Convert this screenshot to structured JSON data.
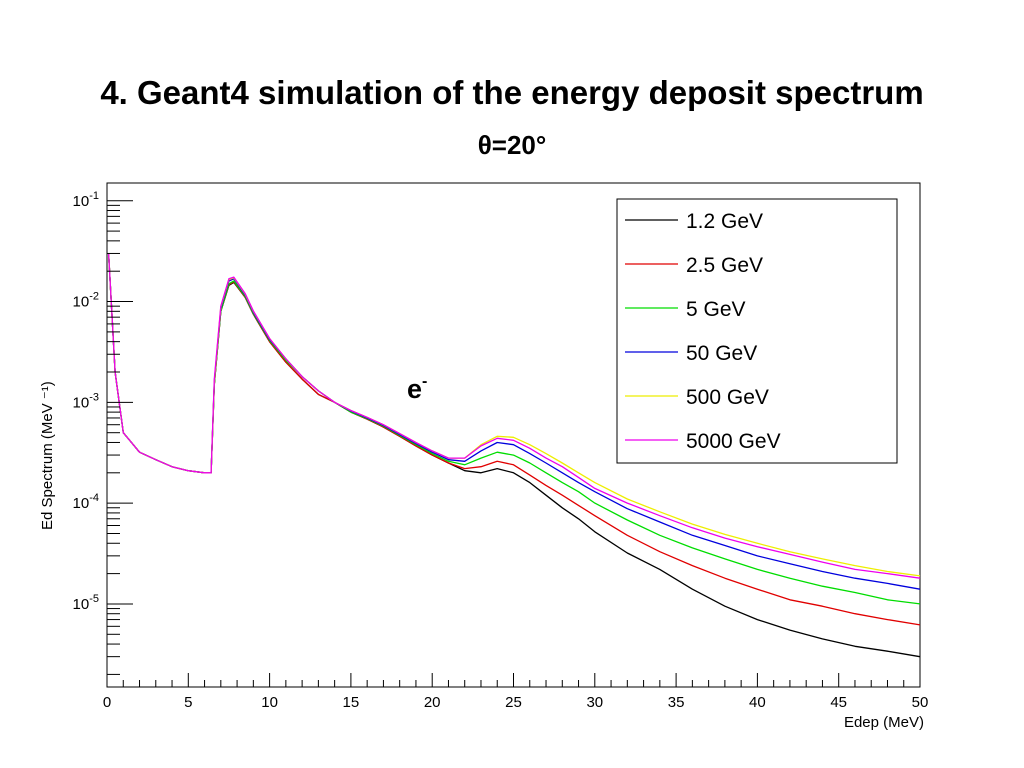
{
  "slide": {
    "title": "4. Geant4 simulation of the energy deposit spectrum",
    "subtitle": "θ=20°"
  },
  "chart_data": {
    "type": "line",
    "xlabel": "Edep (MeV)",
    "ylabel": "Ed Spectrum (MeV ⁻¹)",
    "xlim": [
      0,
      50
    ],
    "ylim": [
      1.5e-06,
      0.15
    ],
    "y_scale": "log",
    "x_ticks": [
      "0",
      "5",
      "10",
      "15",
      "20",
      "25",
      "30",
      "35",
      "40",
      "45",
      "50"
    ],
    "y_ticks": [
      {
        "mantissa": "10",
        "exp": "-1",
        "value": 0.1
      },
      {
        "mantissa": "10",
        "exp": "-2",
        "value": 0.01
      },
      {
        "mantissa": "10",
        "exp": "-3",
        "value": 0.001
      },
      {
        "mantissa": "10",
        "exp": "-4",
        "value": 0.0001
      },
      {
        "mantissa": "10",
        "exp": "-5",
        "value": 1e-05
      }
    ],
    "legend_position": "top-right",
    "annotation": {
      "text": "e",
      "sup": "-"
    },
    "x": [
      0.1,
      0.5,
      1,
      2,
      3,
      4,
      5,
      6,
      6.4,
      6.6,
      7,
      7.5,
      7.8,
      8.5,
      9,
      10,
      11,
      12,
      13,
      14,
      15,
      16,
      17,
      18,
      19,
      20,
      21,
      22,
      23,
      24,
      25,
      26,
      27,
      28,
      29,
      30,
      32,
      34,
      36,
      38,
      40,
      42,
      44,
      46,
      48,
      50
    ],
    "series": [
      {
        "name": "1.2 GeV",
        "color": "#000000",
        "values": [
          0.03,
          0.002,
          0.0005,
          0.00032,
          0.00027,
          0.00023,
          0.00021,
          0.0002,
          0.0002,
          0.0015,
          0.008,
          0.0145,
          0.0155,
          0.011,
          0.0075,
          0.004,
          0.0025,
          0.0017,
          0.0012,
          0.001,
          0.0008,
          0.00068,
          0.00057,
          0.00046,
          0.00037,
          0.0003,
          0.00025,
          0.00021,
          0.0002,
          0.00022,
          0.0002,
          0.00016,
          0.00012,
          9e-05,
          7e-05,
          5.2e-05,
          3.2e-05,
          2.2e-05,
          1.4e-05,
          9.5e-06,
          7e-06,
          5.5e-06,
          4.5e-06,
          3.8e-06,
          3.4e-06,
          3e-06
        ]
      },
      {
        "name": "2.5 GeV",
        "color": "#e00000",
        "values": [
          0.03,
          0.002,
          0.0005,
          0.00032,
          0.00027,
          0.00023,
          0.00021,
          0.0002,
          0.0002,
          0.0015,
          0.008,
          0.0147,
          0.0157,
          0.011,
          0.0075,
          0.004,
          0.0025,
          0.0017,
          0.0012,
          0.001,
          0.0008,
          0.00068,
          0.00057,
          0.00046,
          0.00037,
          0.0003,
          0.00025,
          0.00022,
          0.00023,
          0.00026,
          0.00024,
          0.00019,
          0.00015,
          0.00012,
          9.5e-05,
          7.5e-05,
          4.8e-05,
          3.3e-05,
          2.4e-05,
          1.8e-05,
          1.4e-05,
          1.1e-05,
          9.5e-06,
          8e-06,
          7e-06,
          6.2e-06
        ]
      },
      {
        "name": "5 GeV",
        "color": "#00dd00",
        "values": [
          0.03,
          0.002,
          0.0005,
          0.00032,
          0.00027,
          0.00023,
          0.00021,
          0.0002,
          0.0002,
          0.0015,
          0.008,
          0.015,
          0.016,
          0.0112,
          0.0076,
          0.0041,
          0.0026,
          0.0018,
          0.0013,
          0.001,
          0.0008,
          0.00069,
          0.00058,
          0.00047,
          0.00038,
          0.00031,
          0.00026,
          0.00024,
          0.00028,
          0.00032,
          0.0003,
          0.00025,
          0.0002,
          0.00016,
          0.00013,
          0.0001,
          6.8e-05,
          4.8e-05,
          3.6e-05,
          2.8e-05,
          2.2e-05,
          1.8e-05,
          1.5e-05,
          1.3e-05,
          1.1e-05,
          1e-05
        ]
      },
      {
        "name": "50 GeV",
        "color": "#0000dd",
        "values": [
          0.03,
          0.002,
          0.0005,
          0.00032,
          0.00027,
          0.00023,
          0.00021,
          0.0002,
          0.0002,
          0.0016,
          0.0085,
          0.016,
          0.0168,
          0.0115,
          0.0078,
          0.0042,
          0.0027,
          0.0018,
          0.0013,
          0.001,
          0.00082,
          0.0007,
          0.00059,
          0.00048,
          0.00039,
          0.00032,
          0.00027,
          0.00026,
          0.00033,
          0.0004,
          0.00038,
          0.00031,
          0.00025,
          0.0002,
          0.00016,
          0.00013,
          8.8e-05,
          6.5e-05,
          4.8e-05,
          3.8e-05,
          3e-05,
          2.5e-05,
          2.1e-05,
          1.8e-05,
          1.6e-05,
          1.4e-05
        ]
      },
      {
        "name": "500 GeV",
        "color": "#eeee00",
        "values": [
          0.03,
          0.002,
          0.0005,
          0.00032,
          0.00027,
          0.00023,
          0.00021,
          0.0002,
          0.0002,
          0.0016,
          0.0088,
          0.0165,
          0.0172,
          0.0118,
          0.008,
          0.0043,
          0.0027,
          0.0018,
          0.0013,
          0.001,
          0.00083,
          0.00071,
          0.0006,
          0.00049,
          0.0004,
          0.00033,
          0.00028,
          0.00028,
          0.00038,
          0.00046,
          0.00045,
          0.00038,
          0.00031,
          0.00025,
          0.0002,
          0.00016,
          0.00011,
          8.2e-05,
          6.2e-05,
          4.9e-05,
          4e-05,
          3.3e-05,
          2.8e-05,
          2.4e-05,
          2.1e-05,
          1.9e-05
        ]
      },
      {
        "name": "5000 GeV",
        "color": "#ee00ee",
        "values": [
          0.03,
          0.002,
          0.0005,
          0.00032,
          0.00027,
          0.00023,
          0.00021,
          0.0002,
          0.0002,
          0.0017,
          0.009,
          0.0168,
          0.0175,
          0.012,
          0.0081,
          0.0043,
          0.0027,
          0.0018,
          0.0013,
          0.001,
          0.00083,
          0.00071,
          0.0006,
          0.00049,
          0.0004,
          0.00033,
          0.00028,
          0.00028,
          0.00037,
          0.00044,
          0.00042,
          0.00035,
          0.00028,
          0.00023,
          0.00018,
          0.00014,
          0.0001,
          7.5e-05,
          5.7e-05,
          4.5e-05,
          3.7e-05,
          3.1e-05,
          2.6e-05,
          2.2e-05,
          2e-05,
          1.8e-05
        ]
      }
    ]
  }
}
